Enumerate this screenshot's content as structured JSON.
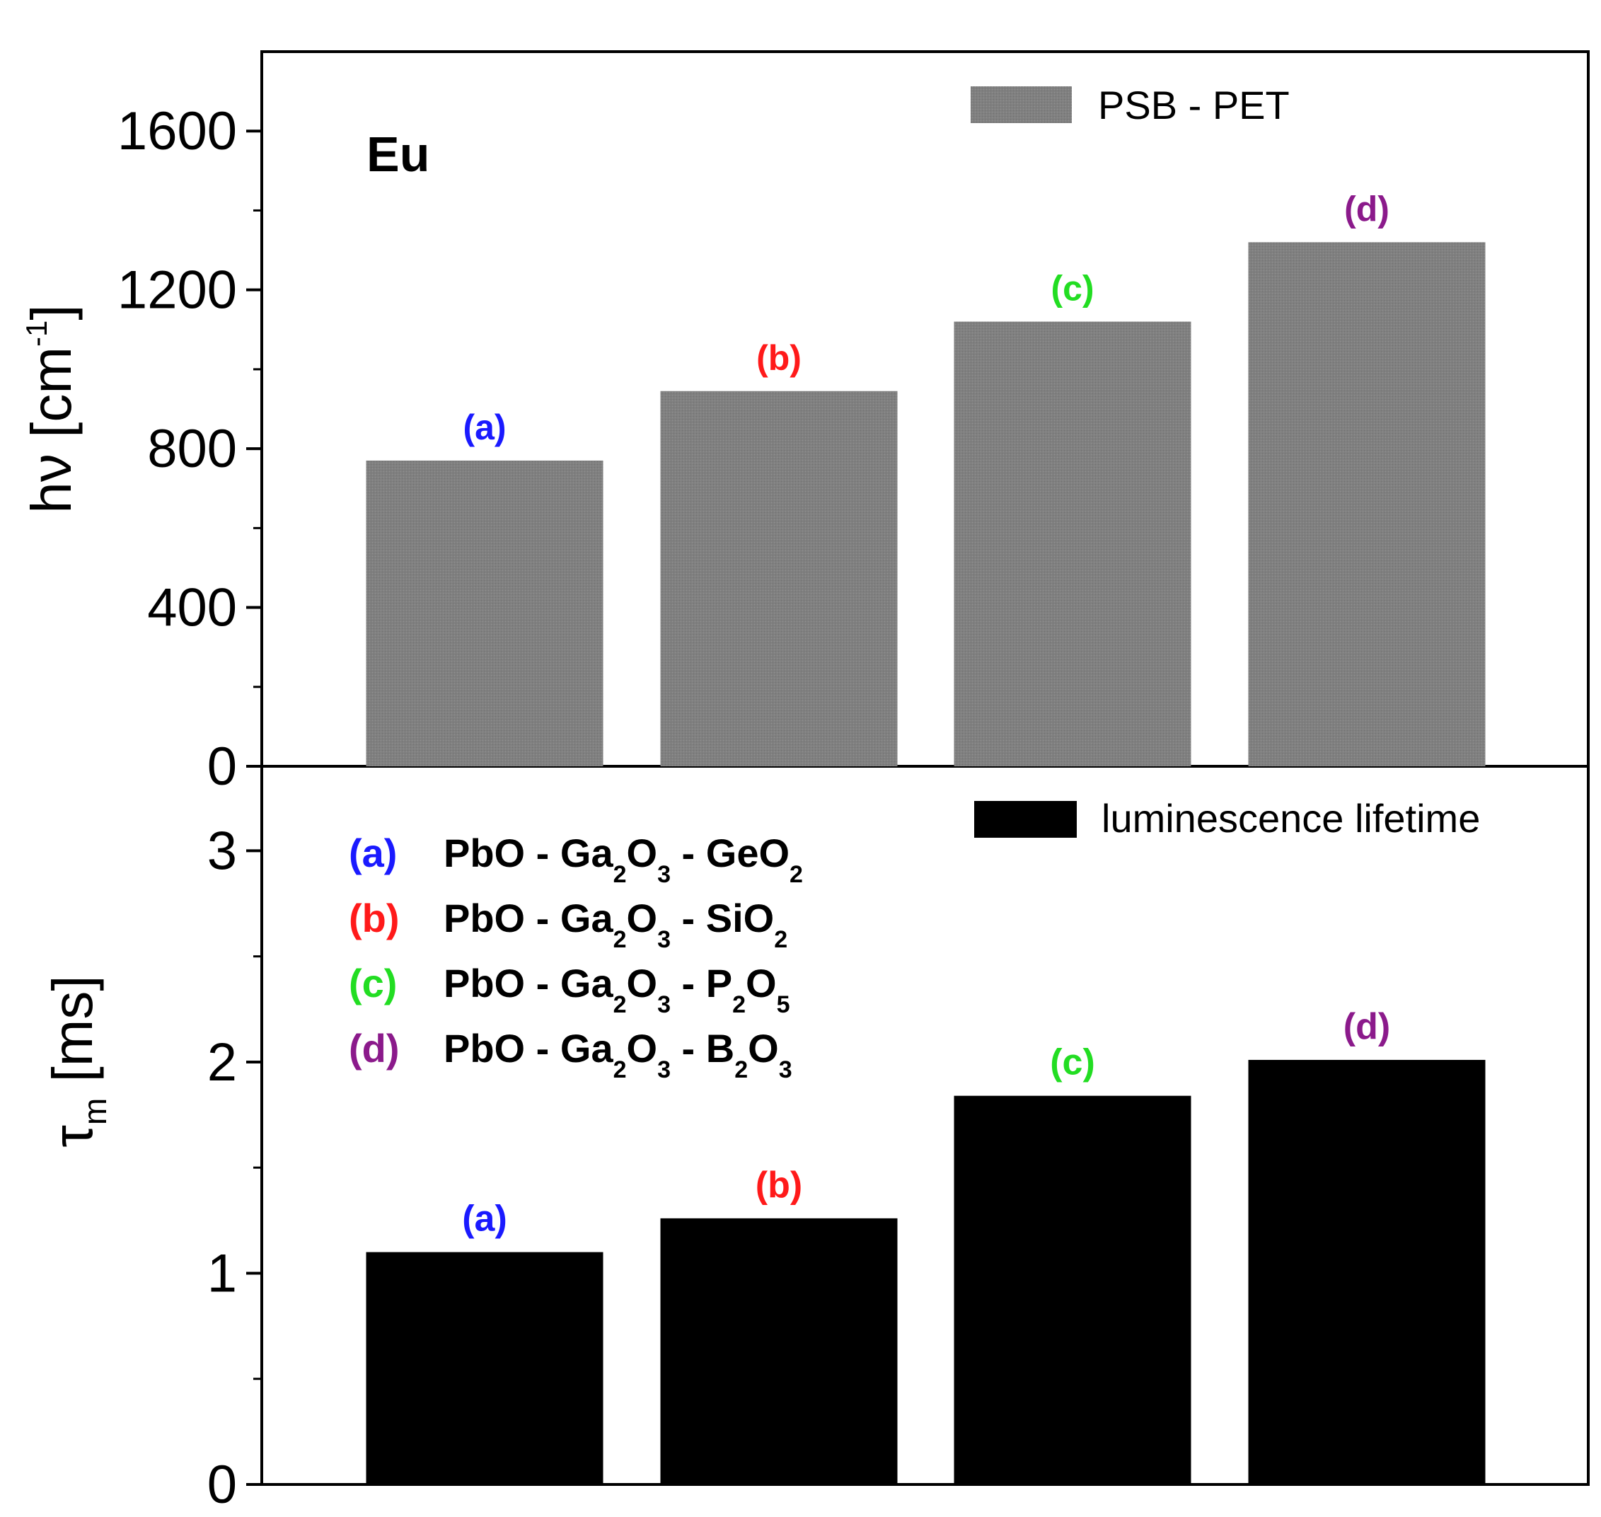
{
  "chart_data": [
    {
      "type": "bar",
      "panel": "top",
      "title": "Eu",
      "xlabel": "",
      "ylabel_main": "hν [cm",
      "ylabel_sup": "-1",
      "ylabel_close": "]",
      "categories": [
        "(a)",
        "(b)",
        "(c)",
        "(d)"
      ],
      "category_colors": [
        "#1a1aff",
        "#ff1a1a",
        "#22dd22",
        "#8b1a8b"
      ],
      "series": [
        {
          "name": "PSB - PET",
          "color": "#808080",
          "values": [
            770,
            945,
            1120,
            1320
          ]
        }
      ],
      "ylim": [
        0,
        1800
      ],
      "yticks": [
        0,
        400,
        800,
        1200,
        1600
      ],
      "ytick_labels": [
        "0",
        "400",
        "800",
        "1200",
        "1600"
      ],
      "legend": {
        "label": "PSB - PET",
        "position": "top-right"
      },
      "grid": false
    },
    {
      "type": "bar",
      "panel": "bottom",
      "xlabel": "",
      "ylabel_main": "τ",
      "ylabel_sub": "m",
      "ylabel_rest": " [ms]",
      "categories": [
        "(a)",
        "(b)",
        "(c)",
        "(d)"
      ],
      "category_colors": [
        "#1a1aff",
        "#ff1a1a",
        "#22dd22",
        "#8b1a8b"
      ],
      "series": [
        {
          "name": "luminescence lifetime",
          "color": "#000000",
          "values": [
            1.1,
            1.26,
            1.84,
            2.01
          ]
        }
      ],
      "ylim": [
        0,
        3.4
      ],
      "yticks": [
        0,
        1,
        2,
        3
      ],
      "ytick_labels": [
        "0",
        "1",
        "2",
        "3"
      ],
      "legend": {
        "label": "luminescence lifetime",
        "position": "top-right"
      },
      "grid": false,
      "composition_legend": [
        {
          "label": "(a)",
          "color": "#1a1aff",
          "parts": [
            [
              "PbO - Ga",
              ""
            ],
            [
              "2",
              "sub"
            ],
            [
              "O",
              ""
            ],
            [
              "3",
              "sub"
            ],
            [
              " - GeO",
              ""
            ],
            [
              "2",
              "sub"
            ]
          ]
        },
        {
          "label": "(b)",
          "color": "#ff1a1a",
          "parts": [
            [
              "PbO - Ga",
              ""
            ],
            [
              "2",
              "sub"
            ],
            [
              "O",
              ""
            ],
            [
              "3",
              "sub"
            ],
            [
              " - SiO",
              ""
            ],
            [
              "2",
              "sub"
            ]
          ]
        },
        {
          "label": "(c)",
          "color": "#22dd22",
          "parts": [
            [
              "PbO - Ga",
              ""
            ],
            [
              "2",
              "sub"
            ],
            [
              "O",
              ""
            ],
            [
              "3",
              "sub"
            ],
            [
              " - P",
              ""
            ],
            [
              "2",
              "sub"
            ],
            [
              "O",
              ""
            ],
            [
              "5",
              "sub"
            ]
          ]
        },
        {
          "label": "(d)",
          "color": "#8b1a8b",
          "parts": [
            [
              "PbO - Ga",
              ""
            ],
            [
              "2",
              "sub"
            ],
            [
              "O",
              ""
            ],
            [
              "3",
              "sub"
            ],
            [
              " - B",
              ""
            ],
            [
              "2",
              "sub"
            ],
            [
              "O",
              ""
            ],
            [
              "3",
              "sub"
            ]
          ]
        }
      ]
    }
  ]
}
